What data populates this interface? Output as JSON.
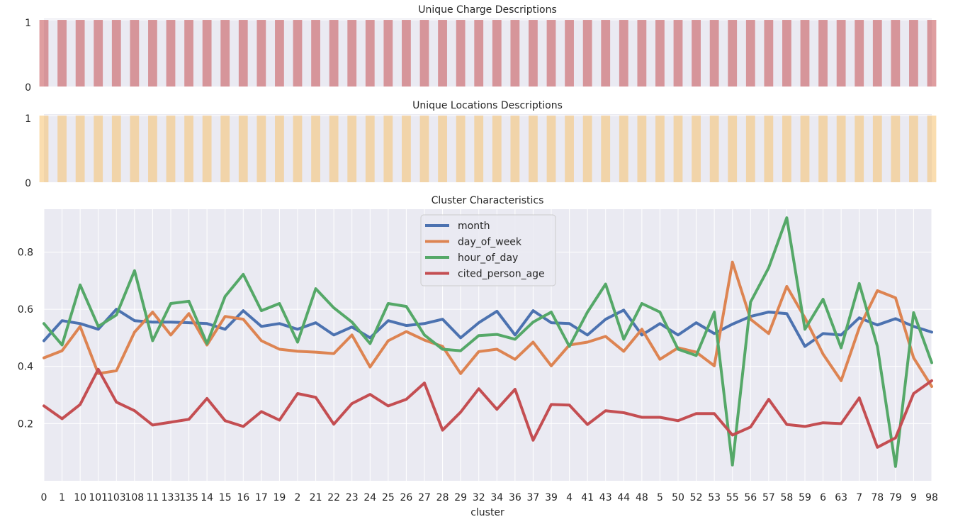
{
  "chart_data": [
    {
      "type": "bar",
      "title": "Unique Charge Descriptions",
      "yticks": [
        "0",
        "1"
      ],
      "ylim": [
        0,
        1
      ],
      "color": "#c44e52",
      "categories": [
        "0",
        "1",
        "10",
        "101",
        "103",
        "108",
        "11",
        "133",
        "135",
        "14",
        "15",
        "16",
        "17",
        "19",
        "2",
        "21",
        "22",
        "23",
        "24",
        "25",
        "26",
        "27",
        "28",
        "29",
        "32",
        "34",
        "36",
        "37",
        "39",
        "4",
        "41",
        "43",
        "44",
        "48",
        "5",
        "50",
        "52",
        "53",
        "55",
        "56",
        "57",
        "58",
        "59",
        "6",
        "63",
        "7",
        "78",
        "79",
        "9",
        "98"
      ],
      "values": [
        1,
        1,
        1,
        1,
        1,
        1,
        1,
        1,
        1,
        1,
        1,
        1,
        1,
        1,
        1,
        1,
        1,
        1,
        1,
        1,
        1,
        1,
        1,
        1,
        1,
        1,
        1,
        1,
        1,
        1,
        1,
        1,
        1,
        1,
        1,
        1,
        1,
        1,
        1,
        1,
        1,
        1,
        1,
        1,
        1,
        1,
        1,
        1,
        1,
        1
      ]
    },
    {
      "type": "bar",
      "title": "Unique Locations Descriptions",
      "yticks": [
        "0",
        "1"
      ],
      "ylim": [
        0,
        1
      ],
      "color": "#f5c16e",
      "categories": [
        "0",
        "1",
        "10",
        "101",
        "103",
        "108",
        "11",
        "133",
        "135",
        "14",
        "15",
        "16",
        "17",
        "19",
        "2",
        "21",
        "22",
        "23",
        "24",
        "25",
        "26",
        "27",
        "28",
        "29",
        "32",
        "34",
        "36",
        "37",
        "39",
        "4",
        "41",
        "43",
        "44",
        "48",
        "5",
        "50",
        "52",
        "53",
        "55",
        "56",
        "57",
        "58",
        "59",
        "6",
        "63",
        "7",
        "78",
        "79",
        "9",
        "98"
      ],
      "values": [
        1,
        1,
        1,
        1,
        1,
        1,
        1,
        1,
        1,
        1,
        1,
        1,
        1,
        1,
        1,
        1,
        1,
        1,
        1,
        1,
        1,
        1,
        1,
        1,
        1,
        1,
        1,
        1,
        1,
        1,
        1,
        1,
        1,
        1,
        1,
        1,
        1,
        1,
        1,
        1,
        1,
        1,
        1,
        1,
        1,
        1,
        1,
        1,
        1,
        1
      ]
    },
    {
      "type": "line",
      "title": "Cluster Characteristics",
      "xlabel": "cluster",
      "ylabel": "",
      "ylim": [
        0,
        0.95
      ],
      "yticks": [
        "0.2",
        "0.4",
        "0.6",
        "0.8"
      ],
      "grid": true,
      "legend": "top-center",
      "categories": [
        "0",
        "1",
        "10",
        "101",
        "103",
        "108",
        "11",
        "133",
        "135",
        "14",
        "15",
        "16",
        "17",
        "19",
        "2",
        "21",
        "22",
        "23",
        "24",
        "25",
        "26",
        "27",
        "28",
        "29",
        "32",
        "34",
        "36",
        "37",
        "39",
        "4",
        "41",
        "43",
        "44",
        "48",
        "5",
        "50",
        "52",
        "53",
        "55",
        "56",
        "57",
        "58",
        "59",
        "6",
        "63",
        "7",
        "78",
        "79",
        "9",
        "98"
      ],
      "series": [
        {
          "name": "month",
          "color": "#4c72b0",
          "values": [
            0.49,
            0.56,
            0.55,
            0.53,
            0.6,
            0.56,
            0.555,
            0.555,
            0.553,
            0.55,
            0.53,
            0.595,
            0.54,
            0.55,
            0.53,
            0.553,
            0.51,
            0.538,
            0.5,
            0.56,
            0.543,
            0.55,
            0.565,
            0.5,
            0.553,
            0.593,
            0.51,
            0.595,
            0.553,
            0.55,
            0.51,
            0.565,
            0.597,
            0.51,
            0.55,
            0.51,
            0.553,
            0.515,
            0.548,
            0.575,
            0.59,
            0.585,
            0.47,
            0.515,
            0.51,
            0.57,
            0.545,
            0.567,
            0.54,
            0.52
          ]
        },
        {
          "name": "day_of_week",
          "color": "#dd8452",
          "values": [
            0.43,
            0.455,
            0.54,
            0.375,
            0.385,
            0.52,
            0.59,
            0.51,
            0.585,
            0.475,
            0.575,
            0.565,
            0.49,
            0.46,
            0.453,
            0.45,
            0.445,
            0.51,
            0.398,
            0.49,
            0.522,
            0.492,
            0.47,
            0.375,
            0.452,
            0.46,
            0.425,
            0.485,
            0.402,
            0.475,
            0.485,
            0.505,
            0.453,
            0.53,
            0.425,
            0.465,
            0.45,
            0.402,
            0.765,
            0.565,
            0.515,
            0.68,
            0.57,
            0.443,
            0.35,
            0.535,
            0.665,
            0.64,
            0.43,
            0.33
          ]
        },
        {
          "name": "hour_of_day",
          "color": "#55a868",
          "values": [
            0.55,
            0.475,
            0.685,
            0.54,
            0.58,
            0.735,
            0.49,
            0.62,
            0.628,
            0.48,
            0.645,
            0.722,
            0.595,
            0.62,
            0.485,
            0.672,
            0.605,
            0.555,
            0.48,
            0.62,
            0.61,
            0.51,
            0.46,
            0.455,
            0.508,
            0.512,
            0.495,
            0.555,
            0.59,
            0.47,
            0.59,
            0.688,
            0.495,
            0.62,
            0.59,
            0.46,
            0.438,
            0.59,
            0.055,
            0.625,
            0.745,
            0.92,
            0.53,
            0.635,
            0.465,
            0.69,
            0.47,
            0.05,
            0.588,
            0.413
          ]
        },
        {
          "name": "cited_person_age",
          "color": "#c44e52",
          "values": [
            0.262,
            0.217,
            0.267,
            0.39,
            0.275,
            0.245,
            0.195,
            0.205,
            0.215,
            0.288,
            0.21,
            0.19,
            0.242,
            0.212,
            0.305,
            0.292,
            0.198,
            0.27,
            0.302,
            0.262,
            0.285,
            0.342,
            0.177,
            0.24,
            0.322,
            0.25,
            0.32,
            0.142,
            0.267,
            0.265,
            0.197,
            0.245,
            0.238,
            0.222,
            0.222,
            0.21,
            0.235,
            0.235,
            0.16,
            0.188,
            0.285,
            0.197,
            0.19,
            0.203,
            0.2,
            0.29,
            0.117,
            0.15,
            0.305,
            0.35
          ]
        }
      ]
    }
  ]
}
